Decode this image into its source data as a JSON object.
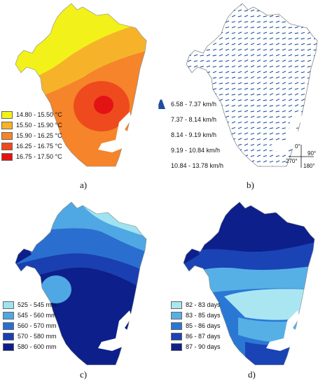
{
  "panels": {
    "a": {
      "label": "a)",
      "legend": [
        {
          "range": "14.80 - 15.50 °C",
          "color": "#f2f21a"
        },
        {
          "range": "15.50 - 15.90 °C",
          "color": "#f6b32a"
        },
        {
          "range": "15.90 - 16.25 °C",
          "color": "#f5842a"
        },
        {
          "range": "16.25 - 16.75 °C",
          "color": "#ee4a1e"
        },
        {
          "range": "16.75 - 17.50 °C",
          "color": "#e41313"
        }
      ]
    },
    "b": {
      "label": "b)",
      "legend": [
        {
          "range": "6.58 - 7.37 km/h"
        },
        {
          "range": "7.37 - 8.14 km/h"
        },
        {
          "range": "8.14 - 9.19 km/h"
        },
        {
          "range": "9.19 - 10.84 km/h"
        },
        {
          "range": "10.84 - 13.78 km/h"
        }
      ],
      "compass": {
        "north": "0°",
        "east": "90°",
        "west": "270°",
        "south": "180°"
      },
      "arrow_color": "#1f4e9e"
    },
    "c": {
      "label": "c)",
      "legend": [
        {
          "range": "525 - 545 mm",
          "color": "#9fe3f0"
        },
        {
          "range": "545 - 560 mm",
          "color": "#4fa8e3"
        },
        {
          "range": "560 - 570 mm",
          "color": "#2a6fcf"
        },
        {
          "range": "570 - 580 mm",
          "color": "#1a3fb0"
        },
        {
          "range": "580 - 600 mm",
          "color": "#0d1f8a"
        }
      ]
    },
    "d": {
      "label": "d)",
      "legend": [
        {
          "range": "82 - 83 days",
          "color": "#a9e6f2"
        },
        {
          "range": "83 - 85 days",
          "color": "#56b0e6"
        },
        {
          "range": "85 - 86 days",
          "color": "#2a78d4"
        },
        {
          "range": "86 - 87 days",
          "color": "#1a43b5"
        },
        {
          "range": "87 - 90 days",
          "color": "#0d1f8a"
        }
      ]
    }
  }
}
